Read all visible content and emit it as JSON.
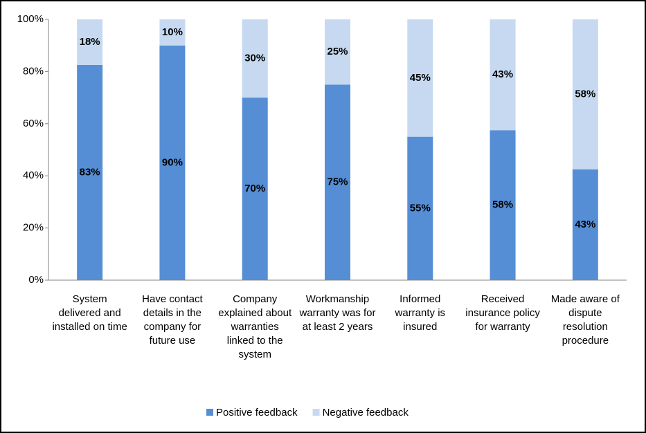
{
  "chart_data": {
    "type": "stacked_bar",
    "categories": [
      "System delivered and installed on time",
      "Have contact details in the company for future use",
      "Company explained about warranties linked to the system",
      "Workmanship warranty was for at least 2 years",
      "Informed warranty is insured",
      "Received insurance policy for warranty",
      "Made aware of dispute resolution procedure"
    ],
    "series": [
      {
        "name": "Positive feedback",
        "color": "#558ed5",
        "values": [
          82.5,
          90,
          70,
          75,
          55,
          57.5,
          42.5
        ],
        "value_labels": [
          "83%",
          "90%",
          "70%",
          "75%",
          "55%",
          "58%",
          "43%"
        ]
      },
      {
        "name": "Negative feedback",
        "color": "#c6d9f1",
        "values": [
          17.5,
          10,
          30,
          25,
          45,
          42.5,
          57.5
        ],
        "value_labels": [
          "18%",
          "10%",
          "30%",
          "25%",
          "45%",
          "43%",
          "58%"
        ]
      }
    ],
    "ylim": [
      0,
      100
    ],
    "yticks": [
      {
        "value": 0,
        "label": "0%"
      },
      {
        "value": 20,
        "label": "20%"
      },
      {
        "value": 40,
        "label": "40%"
      },
      {
        "value": 60,
        "label": "60%"
      },
      {
        "value": 80,
        "label": "80%"
      },
      {
        "value": 100,
        "label": "100%"
      }
    ],
    "legend": "bottom"
  }
}
